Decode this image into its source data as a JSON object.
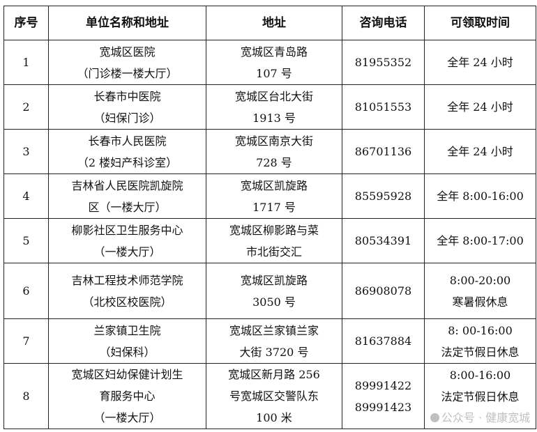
{
  "headers": [
    "序号",
    "单位名称和地址",
    "地址",
    "咨询电话",
    "可领取时间"
  ],
  "rows": [
    {
      "no": "1",
      "name": [
        "宽城区医院",
        "（门诊楼一楼大厅）"
      ],
      "address": [
        "宽城区青岛路",
        "107 号"
      ],
      "phone": [
        "81955352"
      ],
      "time": [
        "全年 24 小时"
      ]
    },
    {
      "no": "2",
      "name": [
        "长春市中医院",
        "（妇保门诊）"
      ],
      "address": [
        "宽城区台北大街",
        "1913 号"
      ],
      "phone": [
        "81051553"
      ],
      "time": [
        "全年 24 小时"
      ]
    },
    {
      "no": "3",
      "name": [
        "长春市人民医院",
        "（2 楼妇产科诊室）"
      ],
      "address": [
        "宽城区南京大街",
        "728 号"
      ],
      "phone": [
        "86701136"
      ],
      "time": [
        "全年 24 小时"
      ]
    },
    {
      "no": "4",
      "name": [
        "吉林省人民医院凯旋院",
        "区（一楼大厅）"
      ],
      "address": [
        "宽城区凯旋路",
        "1717 号"
      ],
      "phone": [
        "85595928"
      ],
      "time": [
        "全年 8:00-16:00"
      ]
    },
    {
      "no": "5",
      "name": [
        "柳影社区卫生服务中心",
        "（一楼大厅）"
      ],
      "address": [
        "宽城区柳影路与菜",
        "市北街交汇"
      ],
      "phone": [
        "80534391"
      ],
      "time": [
        "全年 8:00-17:00"
      ]
    },
    {
      "no": "6",
      "name": [
        "吉林工程技术师范学院",
        "（北校区校医院）"
      ],
      "address": [
        "宽城区凯旋路",
        "3050 号"
      ],
      "phone": [
        "86908078"
      ],
      "time": [
        "8:00-20:00",
        "寒暑假休息"
      ]
    },
    {
      "no": "7",
      "name": [
        "兰家镇卫生院",
        "（妇保科）"
      ],
      "address": [
        "宽城区兰家镇兰家",
        "大街 3720 号"
      ],
      "phone": [
        "81637884"
      ],
      "time": [
        "8:  00-16:00",
        "法定节假日休息"
      ]
    },
    {
      "no": "8",
      "name": [
        "宽城区妇幼保健计划生",
        "育服务中心",
        "（一楼大厅）"
      ],
      "address": [
        "宽城区新月路 256",
        "号宽城区交警队东",
        "100 米"
      ],
      "phone": [
        "89991422",
        "89991423"
      ],
      "time": [
        "8:00-16:00",
        "法定节假日休息"
      ]
    }
  ],
  "watermark": "公众号 · 健康宽城"
}
